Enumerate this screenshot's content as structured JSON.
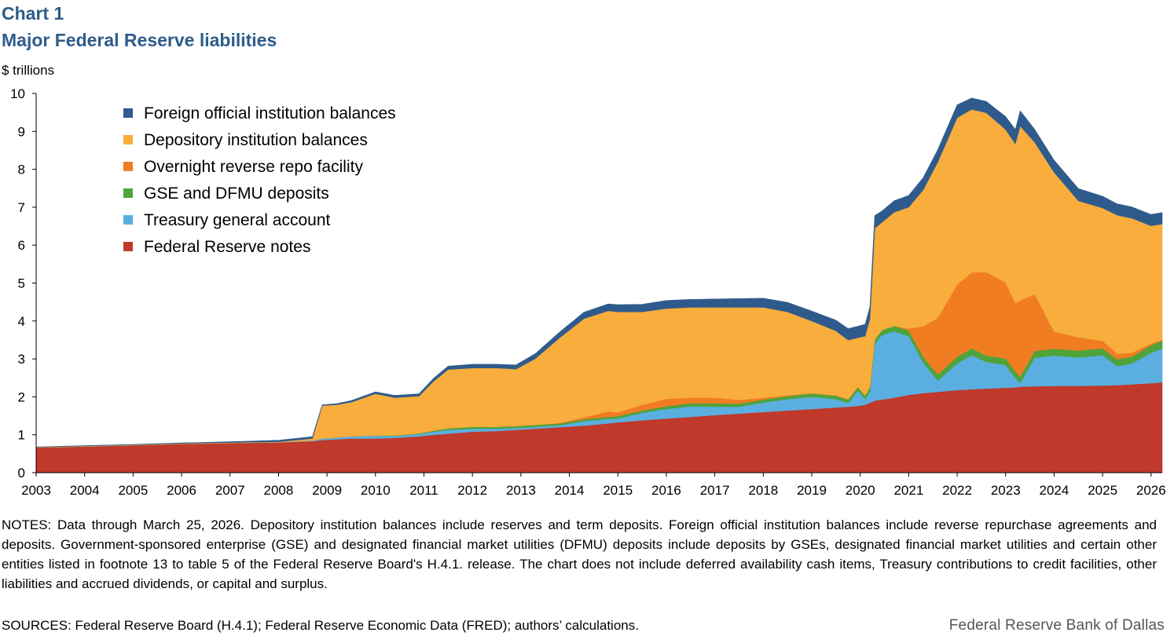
{
  "header": {
    "chart_label": "Chart 1",
    "title": "Major Federal Reserve liabilities",
    "y_unit": "$ trillions"
  },
  "footer": {
    "notes": "NOTES: Data through March 25, 2026. Depository institution balances include reserves and term deposits. Foreign official institution balances include reverse repurchase agreements and deposits. Government-sponsored enterprise (GSE) and designated financial market utilities (DFMU) deposits include deposits by GSEs, designated financial market utilities and certain other entities listed in footnote 13 to table 5 of the Federal Reserve Board's H.4.1. release. The chart does not include deferred availability cash items, Treasury contributions to credit facilities, other liabilities and accrued dividends, or capital and surplus.",
    "sources": "SOURCES: Federal Reserve Board (H.4.1); Federal Reserve Economic Data (FRED); authors’ calculations.",
    "brand": "Federal Reserve Bank of Dallas"
  },
  "chart_data": {
    "type": "area",
    "stacked": true,
    "title": "Major Federal Reserve liabilities",
    "ylabel": "$ trillions",
    "xlabel": "",
    "ylim": [
      0,
      10
    ],
    "xlim": [
      2003.0,
      2026.23
    ],
    "y_ticks": [
      0,
      1,
      2,
      3,
      4,
      5,
      6,
      7,
      8,
      9,
      10
    ],
    "x_ticks": [
      "2003",
      "2004",
      "2005",
      "2006",
      "2007",
      "2008",
      "2009",
      "2010",
      "2011",
      "2012",
      "2013",
      "2014",
      "2015",
      "2016",
      "2017",
      "2018",
      "2019",
      "2020",
      "2021",
      "2022",
      "2023",
      "2024",
      "2025",
      "2026"
    ],
    "legend_position": "top-left",
    "x": [
      2003.0,
      2004.0,
      2005.0,
      2006.0,
      2007.0,
      2008.0,
      2008.7,
      2008.9,
      2009.2,
      2009.5,
      2010.0,
      2010.4,
      2010.9,
      2011.2,
      2011.5,
      2012.0,
      2012.5,
      2012.9,
      2013.3,
      2013.8,
      2014.3,
      2014.8,
      2015.0,
      2015.5,
      2016.0,
      2016.5,
      2017.0,
      2017.5,
      2018.0,
      2018.5,
      2019.0,
      2019.5,
      2019.75,
      2019.95,
      2020.1,
      2020.2,
      2020.3,
      2020.45,
      2020.7,
      2021.0,
      2021.3,
      2021.6,
      2022.0,
      2022.3,
      2022.6,
      2023.0,
      2023.2,
      2023.3,
      2023.6,
      2024.0,
      2024.5,
      2025.0,
      2025.3,
      2025.6,
      2026.0,
      2026.23
    ],
    "series": [
      {
        "name": "Federal Reserve notes",
        "color": "#c0392b",
        "values": [
          0.66,
          0.69,
          0.72,
          0.76,
          0.78,
          0.8,
          0.83,
          0.86,
          0.88,
          0.9,
          0.9,
          0.92,
          0.96,
          1.0,
          1.03,
          1.08,
          1.1,
          1.13,
          1.16,
          1.2,
          1.24,
          1.3,
          1.33,
          1.38,
          1.43,
          1.47,
          1.52,
          1.56,
          1.6,
          1.64,
          1.68,
          1.72,
          1.74,
          1.76,
          1.79,
          1.84,
          1.9,
          1.93,
          1.98,
          2.05,
          2.1,
          2.13,
          2.18,
          2.2,
          2.22,
          2.24,
          2.25,
          2.27,
          2.28,
          2.29,
          2.29,
          2.3,
          2.31,
          2.33,
          2.36,
          2.38
        ]
      },
      {
        "name": "Treasury general account",
        "color": "#5aafe0",
        "values": [
          0.005,
          0.005,
          0.005,
          0.005,
          0.005,
          0.005,
          0.02,
          0.04,
          0.05,
          0.06,
          0.07,
          0.05,
          0.06,
          0.08,
          0.1,
          0.08,
          0.06,
          0.05,
          0.05,
          0.05,
          0.12,
          0.12,
          0.1,
          0.2,
          0.25,
          0.28,
          0.22,
          0.18,
          0.25,
          0.3,
          0.32,
          0.22,
          0.1,
          0.4,
          0.15,
          0.3,
          1.5,
          1.7,
          1.75,
          1.55,
          0.8,
          0.3,
          0.7,
          0.9,
          0.7,
          0.6,
          0.25,
          0.1,
          0.75,
          0.8,
          0.75,
          0.8,
          0.5,
          0.55,
          0.8,
          0.9
        ]
      },
      {
        "name": "GSE and DFMU deposits",
        "color": "#4fa33b",
        "values": [
          0,
          0,
          0,
          0,
          0,
          0,
          0,
          0,
          0,
          0,
          0.01,
          0.01,
          0.02,
          0.03,
          0.04,
          0.05,
          0.05,
          0.05,
          0.05,
          0.05,
          0.05,
          0.05,
          0.06,
          0.06,
          0.07,
          0.08,
          0.09,
          0.08,
          0.08,
          0.08,
          0.09,
          0.09,
          0.09,
          0.1,
          0.1,
          0.12,
          0.12,
          0.13,
          0.14,
          0.15,
          0.16,
          0.16,
          0.18,
          0.18,
          0.17,
          0.17,
          0.17,
          0.17,
          0.18,
          0.18,
          0.18,
          0.18,
          0.18,
          0.18,
          0.2,
          0.2
        ]
      },
      {
        "name": "Overnight reverse repo facility",
        "color": "#f07d22",
        "values": [
          0,
          0,
          0,
          0,
          0,
          0,
          0,
          0,
          0,
          0,
          0,
          0,
          0,
          0,
          0,
          0,
          0,
          0,
          0,
          0.01,
          0.05,
          0.15,
          0.1,
          0.15,
          0.2,
          0.15,
          0.15,
          0.1,
          0.05,
          0.02,
          0.01,
          0.01,
          0.01,
          0,
          0,
          0,
          0,
          0,
          0,
          0.05,
          0.8,
          1.5,
          1.9,
          2.0,
          2.2,
          2.0,
          1.8,
          2.0,
          1.5,
          0.45,
          0.35,
          0.2,
          0.15,
          0.1,
          0.05,
          0.03
        ]
      },
      {
        "name": "Depository institution balances",
        "color": "#f8ad3c",
        "values": [
          0.01,
          0.01,
          0.01,
          0.01,
          0.01,
          0.01,
          0.05,
          0.87,
          0.86,
          0.9,
          1.1,
          1.0,
          0.98,
          1.3,
          1.55,
          1.55,
          1.55,
          1.5,
          1.75,
          2.25,
          2.6,
          2.65,
          2.65,
          2.45,
          2.38,
          2.38,
          2.38,
          2.44,
          2.38,
          2.2,
          1.9,
          1.7,
          1.56,
          1.3,
          1.56,
          1.8,
          2.93,
          2.84,
          3.0,
          3.2,
          3.6,
          4.1,
          4.4,
          4.3,
          4.2,
          4.04,
          4.2,
          4.6,
          4.0,
          4.2,
          3.6,
          3.5,
          3.65,
          3.55,
          3.1,
          3.05
        ]
      },
      {
        "name": "Foreign official institution balances",
        "color": "#2f5b8c",
        "values": [
          0.005,
          0.01,
          0.01,
          0.01,
          0.02,
          0.04,
          0.05,
          0.02,
          0.03,
          0.04,
          0.05,
          0.06,
          0.06,
          0.08,
          0.09,
          0.1,
          0.1,
          0.11,
          0.13,
          0.15,
          0.17,
          0.18,
          0.19,
          0.2,
          0.21,
          0.21,
          0.22,
          0.23,
          0.24,
          0.25,
          0.26,
          0.28,
          0.3,
          0.3,
          0.31,
          0.31,
          0.33,
          0.3,
          0.3,
          0.31,
          0.32,
          0.33,
          0.34,
          0.3,
          0.3,
          0.34,
          0.38,
          0.4,
          0.34,
          0.32,
          0.32,
          0.31,
          0.3,
          0.3,
          0.3,
          0.3
        ]
      }
    ]
  }
}
